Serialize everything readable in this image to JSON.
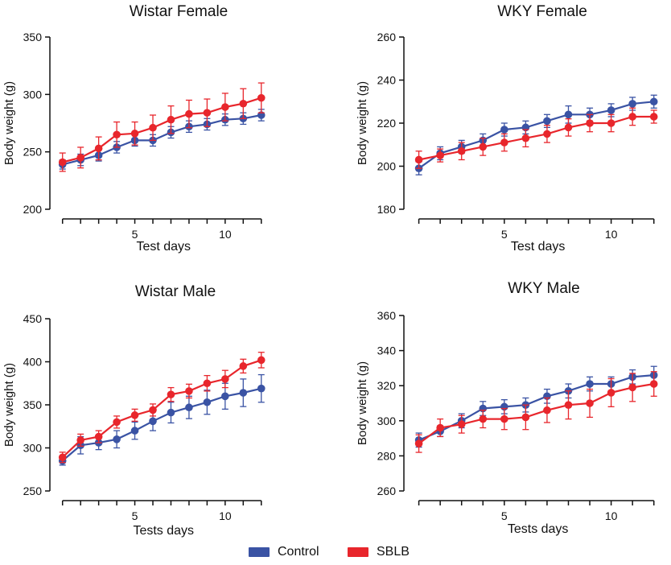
{
  "colors": {
    "control": "#3a53a4",
    "sblb": "#e8262c",
    "axis": "#111111"
  },
  "legend": {
    "control_label": "Control",
    "sblb_label": "SBLB"
  },
  "chart_data": [
    {
      "type": "line",
      "title": "Wistar Female",
      "xlabel": "Test days",
      "ylabel": "Body weight (g)",
      "ylim": [
        200,
        350
      ],
      "yticks": [
        200,
        250,
        300,
        350
      ],
      "xticks": [
        5,
        10
      ],
      "xlim": [
        0.3,
        12.5
      ],
      "x": [
        1,
        2,
        3,
        4,
        5,
        6,
        7,
        8,
        9,
        10,
        11,
        12
      ],
      "series": [
        {
          "name": "Control",
          "values": [
            239,
            243,
            247,
            254,
            260,
            260,
            267,
            272,
            274,
            278,
            279,
            282
          ],
          "errors": [
            4,
            5,
            5,
            5,
            5,
            5,
            5,
            5,
            5,
            5,
            5,
            5
          ]
        },
        {
          "name": "SBLB",
          "values": [
            241,
            245,
            253,
            265,
            266,
            271,
            278,
            283,
            284,
            289,
            292,
            297
          ],
          "errors": [
            8,
            9,
            10,
            11,
            10,
            11,
            12,
            12,
            12,
            12,
            13,
            13
          ]
        }
      ]
    },
    {
      "type": "line",
      "title": "WKY Female",
      "xlabel": "Test days",
      "ylabel": "Body weight (g)",
      "ylim": [
        180,
        260
      ],
      "yticks": [
        180,
        200,
        220,
        240,
        260
      ],
      "xticks": [
        5,
        10
      ],
      "xlim": [
        0.3,
        12.5
      ],
      "x": [
        1,
        2,
        3,
        4,
        5,
        6,
        7,
        8,
        9,
        10,
        11,
        12
      ],
      "series": [
        {
          "name": "Control",
          "values": [
            199,
            206,
            209,
            212,
            217,
            218,
            221,
            224,
            224,
            226,
            229,
            230
          ],
          "errors": [
            3,
            3,
            3,
            3,
            3,
            3,
            3,
            4,
            3,
            3,
            3,
            3
          ]
        },
        {
          "name": "SBLB",
          "values": [
            203,
            205,
            207,
            209,
            211,
            213,
            215,
            218,
            220,
            220,
            223,
            223
          ],
          "errors": [
            4,
            3,
            4,
            4,
            4,
            4,
            4,
            4,
            4,
            4,
            4,
            3
          ]
        }
      ]
    },
    {
      "type": "line",
      "title": "Wistar Male",
      "xlabel": "Tests days",
      "ylabel": "Body weight (g)",
      "ylim": [
        250,
        450
      ],
      "yticks": [
        250,
        300,
        350,
        400,
        450
      ],
      "xticks": [
        5,
        10
      ],
      "xlim": [
        0.3,
        12.5
      ],
      "x": [
        1,
        2,
        3,
        4,
        5,
        6,
        7,
        8,
        9,
        10,
        11,
        12
      ],
      "series": [
        {
          "name": "Control",
          "values": [
            285,
            303,
            306,
            310,
            320,
            331,
            341,
            347,
            353,
            360,
            364,
            369
          ],
          "errors": [
            5,
            10,
            8,
            10,
            10,
            11,
            12,
            13,
            14,
            15,
            16,
            16
          ]
        },
        {
          "name": "SBLB",
          "values": [
            289,
            309,
            313,
            330,
            338,
            344,
            362,
            366,
            375,
            380,
            395,
            402
          ],
          "errors": [
            6,
            7,
            7,
            7,
            7,
            7,
            8,
            8,
            9,
            10,
            8,
            9
          ]
        }
      ]
    },
    {
      "type": "line",
      "title": "WKY Male",
      "xlabel": "Tests days",
      "ylabel": "Body weight (g)",
      "ylim": [
        260,
        360
      ],
      "yticks": [
        260,
        280,
        300,
        320,
        340,
        360
      ],
      "xticks": [
        5,
        10
      ],
      "xlim": [
        0.3,
        12.5
      ],
      "x": [
        1,
        2,
        3,
        4,
        5,
        6,
        7,
        8,
        9,
        10,
        11,
        12
      ],
      "series": [
        {
          "name": "Control",
          "values": [
            289,
            294,
            300,
            307,
            308,
            309,
            314,
            317,
            321,
            321,
            325,
            326
          ],
          "errors": [
            4,
            3,
            4,
            4,
            4,
            4,
            4,
            4,
            4,
            4,
            4,
            5
          ]
        },
        {
          "name": "SBLB",
          "values": [
            287,
            296,
            298,
            301,
            301,
            302,
            306,
            309,
            310,
            316,
            319,
            321
          ],
          "errors": [
            5,
            5,
            5,
            5,
            6,
            7,
            7,
            8,
            8,
            8,
            8,
            7
          ]
        }
      ]
    }
  ]
}
